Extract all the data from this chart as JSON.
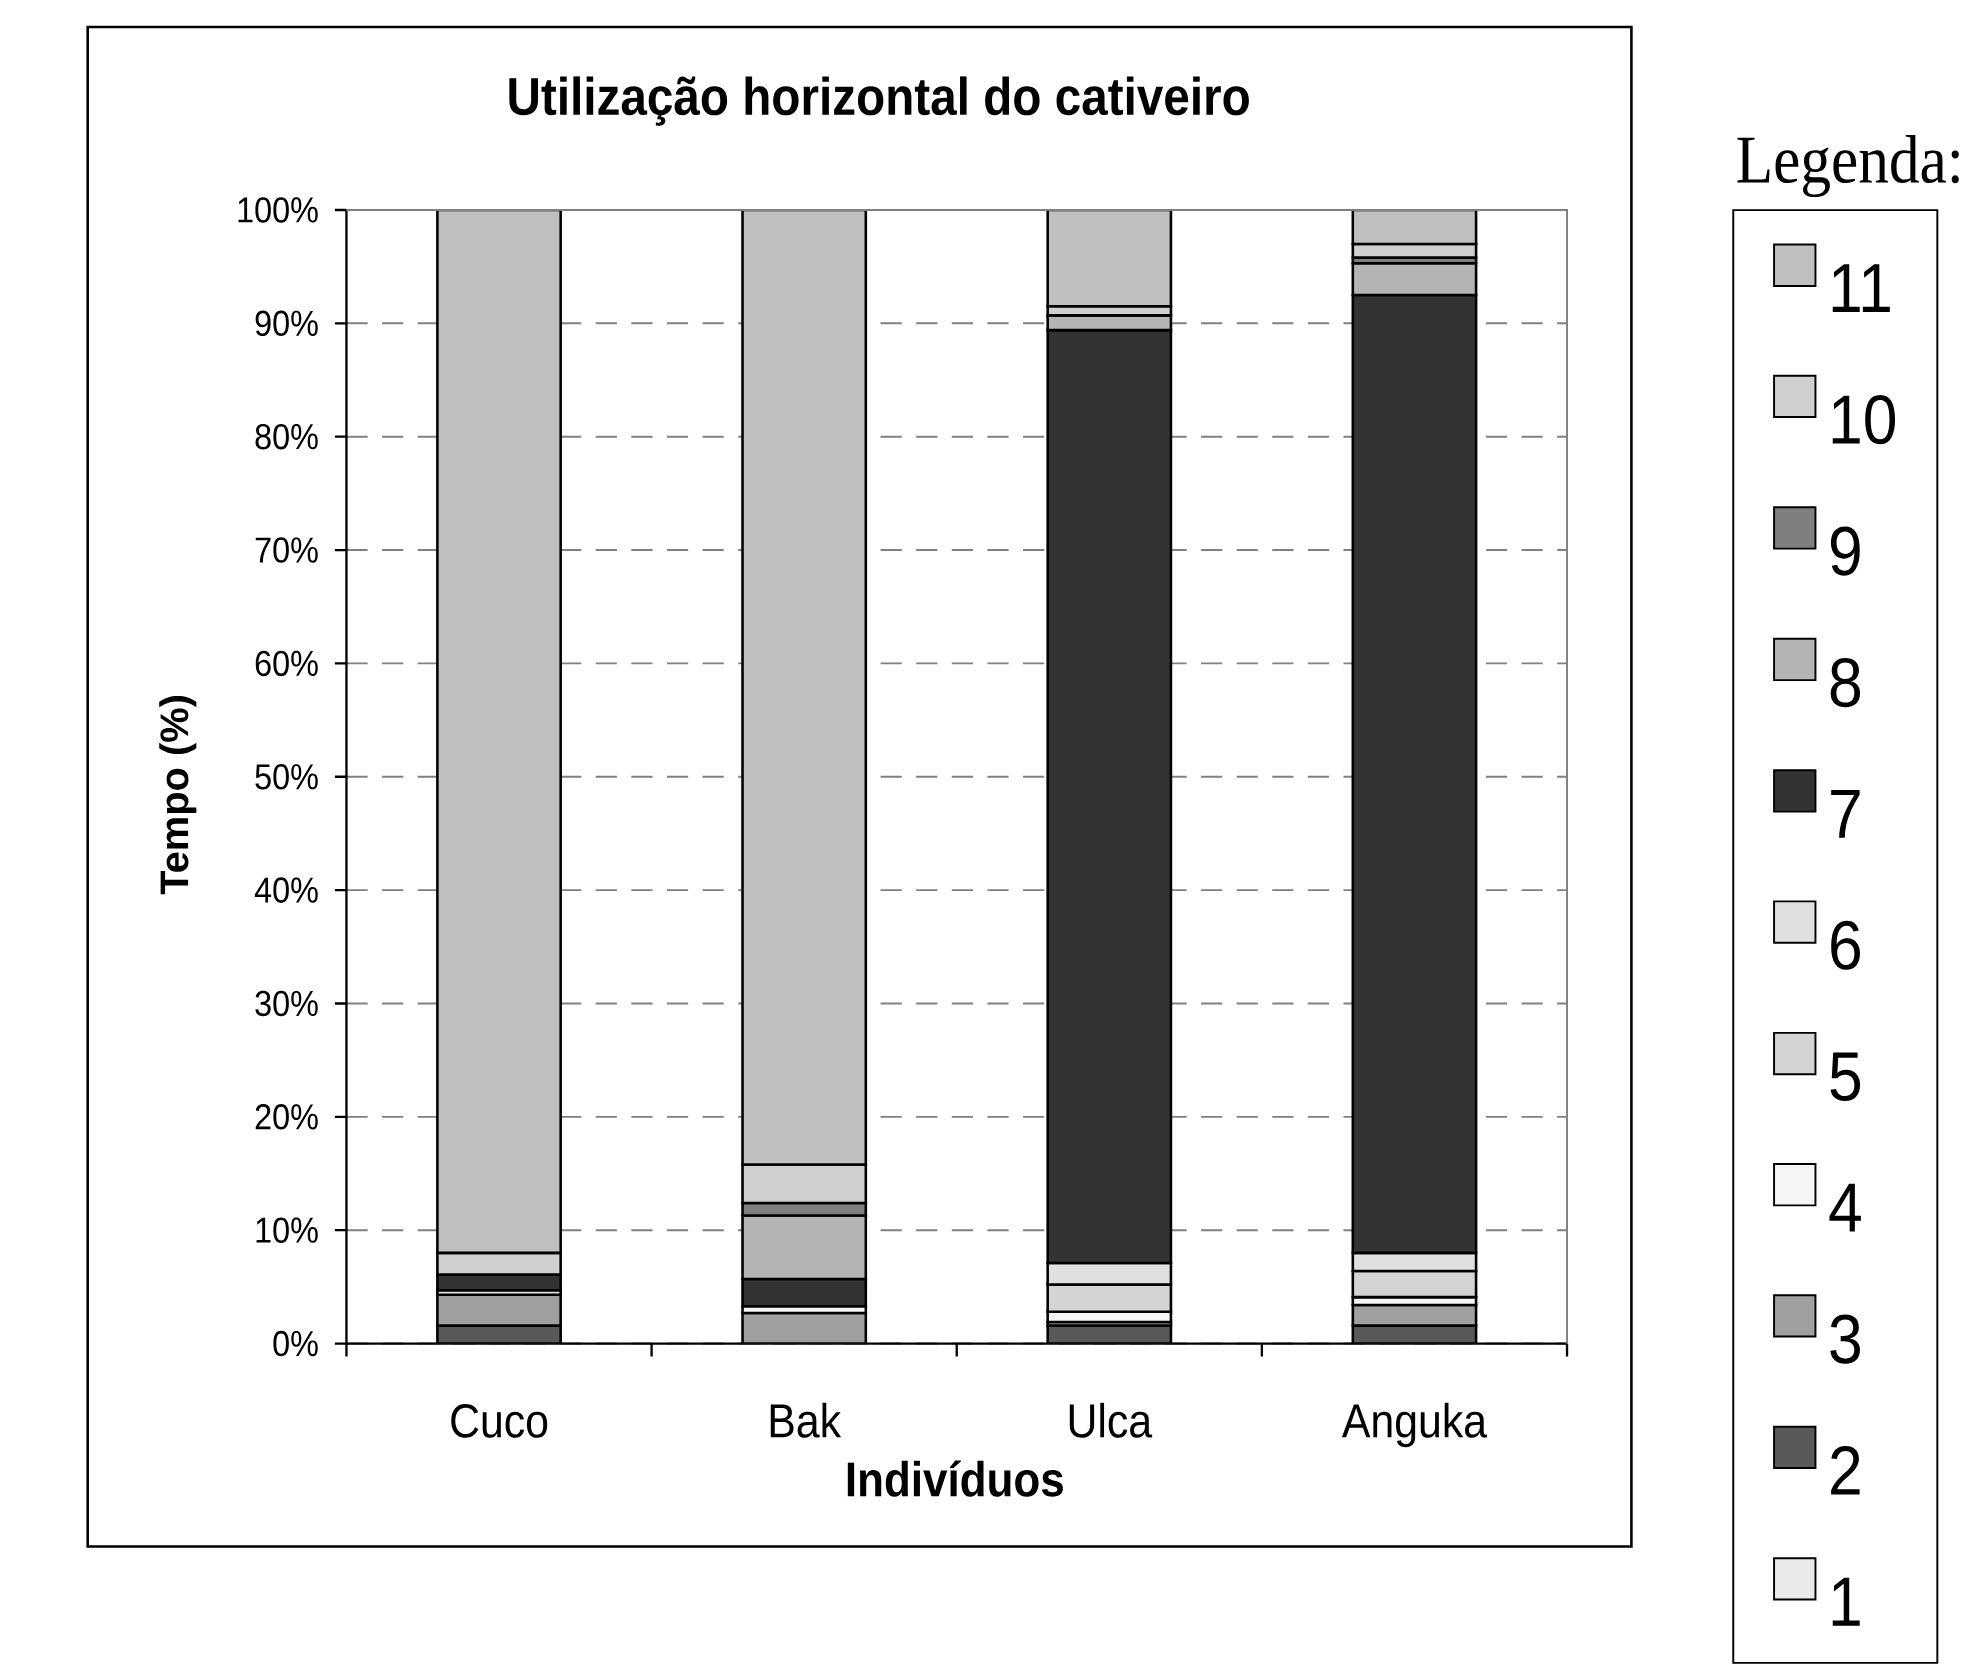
{
  "chart_data": {
    "type": "bar",
    "stacked": true,
    "title": "Utilização horizontal do cativeiro",
    "xlabel": "Indivíduos",
    "ylabel": "Tempo (%)",
    "legend_title": "Legenda:",
    "categories": [
      "Cuco",
      "Bak",
      "Ulca",
      "Anguka"
    ],
    "ylim": [
      0,
      100
    ],
    "yticks": [
      {
        "value": 0,
        "label": "0%"
      },
      {
        "value": 10,
        "label": "10%"
      },
      {
        "value": 20,
        "label": "20%"
      },
      {
        "value": 30,
        "label": "30%"
      },
      {
        "value": 40,
        "label": "40%"
      },
      {
        "value": 50,
        "label": "50%"
      },
      {
        "value": 60,
        "label": "60%"
      },
      {
        "value": 70,
        "label": "70%"
      },
      {
        "value": 80,
        "label": "80%"
      },
      {
        "value": 90,
        "label": "90%"
      },
      {
        "value": 100,
        "label": "100%"
      }
    ],
    "grid": "y",
    "legend": "right",
    "series": [
      {
        "name": "1",
        "color": "#eaeaea",
        "values": [
          null,
          null,
          null,
          null
        ]
      },
      {
        "name": "2",
        "color": "#595959",
        "values": [
          1.6,
          null,
          1.6,
          1.6
        ]
      },
      {
        "name": "3",
        "color": "#a0a0a0",
        "values": [
          2.7,
          2.7,
          0.3,
          1.8
        ]
      },
      {
        "name": "4",
        "color": "#f5f5f5",
        "values": [
          null,
          0.6,
          0.9,
          0.7
        ]
      },
      {
        "name": "5",
        "color": "#d4d4d4",
        "values": [
          null,
          null,
          2.4,
          2.3
        ]
      },
      {
        "name": "6",
        "color": "#e0e0e0",
        "values": [
          0.4,
          null,
          1.9,
          1.6
        ]
      },
      {
        "name": "7",
        "color": "#333333",
        "values": [
          1.4,
          2.4,
          82.3,
          84.5
        ]
      },
      {
        "name": "8",
        "color": "#b4b4b4",
        "values": [
          null,
          5.6,
          1.3,
          2.8
        ]
      },
      {
        "name": "9",
        "color": "#7f7f7f",
        "values": [
          null,
          1.1,
          null,
          0.5
        ]
      },
      {
        "name": "10",
        "color": "#cfcfcf",
        "values": [
          1.9,
          3.4,
          0.8,
          1.2
        ]
      },
      {
        "name": "11",
        "color": "#c0c0c0",
        "values": [
          92.0,
          84.2,
          8.5,
          3.0
        ]
      }
    ]
  }
}
